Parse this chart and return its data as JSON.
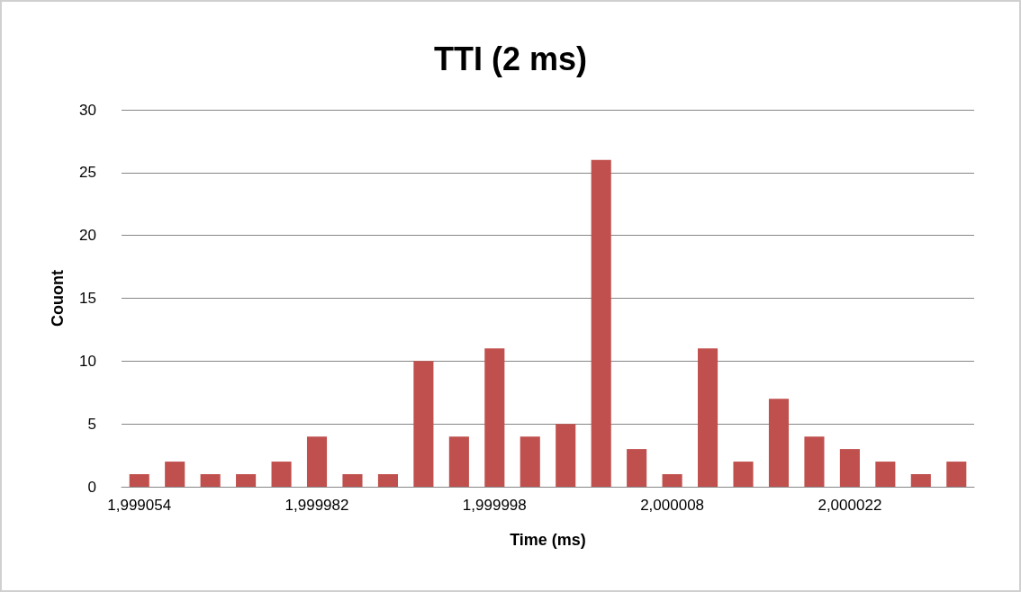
{
  "chart_data": {
    "type": "bar",
    "title": "TTI (2 ms)",
    "xlabel": "Time (ms)",
    "ylabel": "Couont",
    "categories": [
      "1,999054",
      null,
      null,
      null,
      null,
      "1,999982",
      null,
      null,
      null,
      null,
      "1,999998",
      null,
      null,
      null,
      null,
      "2,000008",
      null,
      null,
      null,
      null,
      "2,000022",
      null,
      null,
      null
    ],
    "values": [
      1,
      2,
      1,
      1,
      2,
      4,
      1,
      1,
      10,
      4,
      11,
      4,
      5,
      26,
      3,
      1,
      11,
      2,
      7,
      4,
      3,
      2,
      1,
      2
    ],
    "color": "#c0504d",
    "ylim": [
      0,
      30
    ],
    "yticks": [
      0,
      5,
      10,
      15,
      20,
      25,
      30
    ],
    "grid": "y"
  }
}
